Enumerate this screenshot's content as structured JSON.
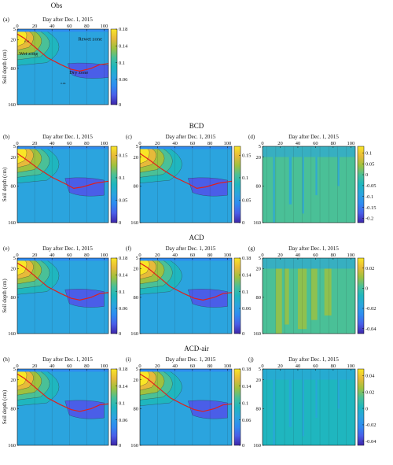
{
  "figure": {
    "rows": [
      {
        "title": "Obs",
        "panels": [
          "a"
        ]
      },
      {
        "title": "BCD",
        "panels": [
          "b",
          "c",
          "d"
        ]
      },
      {
        "title": "ACD",
        "panels": [
          "e",
          "f",
          "g"
        ]
      },
      {
        "title": "ACD-air",
        "panels": [
          "h",
          "i",
          "j"
        ]
      }
    ]
  },
  "chart_data": [
    {
      "type": "heatmap",
      "id": "a",
      "panel_label": "(a)",
      "xlabel": "Day after Dec. 1, 2015",
      "ylabel": "Soil depth (cm)",
      "xticks": [
        0,
        20,
        40,
        60,
        80,
        100
      ],
      "yticks": [
        5,
        20,
        80,
        160
      ],
      "xlim": [
        0,
        105
      ],
      "ylim": [
        5,
        160
      ],
      "colorbar": {
        "min": 0,
        "max": 0.18,
        "ticks": [
          "0.18",
          "0.14",
          "0.1",
          "0.06",
          "0"
        ]
      },
      "colormap": [
        "#3d26a8",
        "#4a5ee8",
        "#2f8cf0",
        "#2ba4de",
        "#1fb6bf",
        "#4ac097",
        "#9fc13f",
        "#e7ba3a",
        "#f9e626"
      ],
      "annotations": [
        "Rewet zone",
        "Wet zone",
        "Dry zone"
      ],
      "contour_labels": [
        "0.14",
        "0.1",
        "0.06"
      ],
      "red_line": {
        "x": [
          0,
          8,
          20,
          35,
          50,
          62,
          72,
          85,
          95,
          105
        ],
        "y": [
          12,
          18,
          35,
          58,
          72,
          82,
          86,
          80,
          72,
          70
        ]
      }
    },
    {
      "type": "heatmap",
      "id": "b",
      "panel_label": "(b)",
      "xlabel": "Day after Dec. 1, 2015",
      "ylabel": "Soil depth (cm)",
      "xticks": [
        0,
        20,
        40,
        60,
        80,
        100
      ],
      "yticks": [
        5,
        20,
        80,
        160
      ],
      "xlim": [
        0,
        105
      ],
      "ylim": [
        5,
        160
      ],
      "colorbar": {
        "min": 0,
        "max": 0.17,
        "ticks": [
          "0.15",
          "0.1",
          "0.05",
          "0"
        ]
      },
      "red_line": {
        "x": [
          0,
          10,
          25,
          40,
          55,
          65,
          75,
          90,
          105
        ],
        "y": [
          15,
          25,
          45,
          62,
          75,
          85,
          82,
          74,
          70
        ]
      }
    },
    {
      "type": "heatmap",
      "id": "c",
      "panel_label": "(c)",
      "xlabel": "Day after Dec. 1, 2015",
      "ylabel": "",
      "xticks": [
        0,
        20,
        40,
        60,
        80,
        100
      ],
      "yticks": [
        5,
        20,
        80,
        160
      ],
      "xlim": [
        0,
        105
      ],
      "ylim": [
        5,
        160
      ],
      "colorbar": {
        "min": 0,
        "max": 0.17,
        "ticks": [
          "0.15",
          "0.1",
          "0.05",
          "0"
        ]
      },
      "red_line": {
        "x": [
          0,
          10,
          25,
          40,
          55,
          65,
          75,
          90,
          105
        ],
        "y": [
          15,
          25,
          45,
          62,
          75,
          85,
          82,
          74,
          70
        ]
      }
    },
    {
      "type": "heatmap",
      "id": "d",
      "panel_label": "(d)",
      "xlabel": "Day after Dec. 1, 2015",
      "ylabel": "",
      "xticks": [
        0,
        20,
        40,
        60,
        80,
        100
      ],
      "yticks": [
        5,
        20,
        80,
        160
      ],
      "xlim": [
        0,
        105
      ],
      "ylim": [
        5,
        160
      ],
      "colorbar": {
        "min": -0.22,
        "max": 0.13,
        "ticks": [
          "0.1",
          "0.05",
          "0",
          "-0.05",
          "-0.1",
          "-0.15",
          "-0.2"
        ]
      }
    },
    {
      "type": "heatmap",
      "id": "e",
      "panel_label": "(e)",
      "xlabel": "Day after Dec. 1, 2015",
      "ylabel": "Soil depth (cm)",
      "xticks": [
        0,
        20,
        40,
        60,
        80,
        100
      ],
      "yticks": [
        5,
        20,
        80,
        160
      ],
      "xlim": [
        0,
        105
      ],
      "ylim": [
        5,
        160
      ],
      "colorbar": {
        "min": 0,
        "max": 0.18,
        "ticks": [
          "0.18",
          "0.14",
          "0.1",
          "0.06",
          "0"
        ]
      },
      "red_line": {
        "x": [
          0,
          8,
          20,
          35,
          50,
          62,
          72,
          85,
          95,
          105
        ],
        "y": [
          12,
          18,
          35,
          58,
          72,
          82,
          86,
          80,
          72,
          70
        ]
      }
    },
    {
      "type": "heatmap",
      "id": "f",
      "panel_label": "(f)",
      "xlabel": "Day after Dec. 1, 2015",
      "ylabel": "",
      "xticks": [
        0,
        20,
        40,
        60,
        80,
        100
      ],
      "yticks": [
        5,
        20,
        80,
        160
      ],
      "xlim": [
        0,
        105
      ],
      "ylim": [
        5,
        160
      ],
      "colorbar": {
        "min": 0,
        "max": 0.18,
        "ticks": [
          "0.18",
          "0.14",
          "0.1",
          "0.06",
          "0"
        ]
      },
      "red_line": {
        "x": [
          0,
          8,
          20,
          35,
          50,
          62,
          72,
          85,
          95,
          105
        ],
        "y": [
          12,
          18,
          35,
          58,
          72,
          82,
          86,
          80,
          72,
          70
        ]
      }
    },
    {
      "type": "heatmap",
      "id": "g",
      "panel_label": "(g)",
      "xlabel": "Day after Dec. 1, 2015",
      "ylabel": "",
      "xticks": [
        0,
        20,
        40,
        60,
        80,
        100
      ],
      "yticks": [
        5,
        20,
        80,
        160
      ],
      "xlim": [
        0,
        105
      ],
      "ylim": [
        5,
        160
      ],
      "colorbar": {
        "min": -0.045,
        "max": 0.03,
        "ticks": [
          "0.02",
          "0",
          "-0.02",
          "-0.04"
        ]
      }
    },
    {
      "type": "heatmap",
      "id": "h",
      "panel_label": "(h)",
      "xlabel": "Day after Dec. 1, 2015",
      "ylabel": "Soil depth (cm)",
      "xticks": [
        0,
        20,
        40,
        60,
        80,
        100
      ],
      "yticks": [
        5,
        20,
        80,
        160
      ],
      "xlim": [
        0,
        105
      ],
      "ylim": [
        5,
        160
      ],
      "colorbar": {
        "min": 0,
        "max": 0.18,
        "ticks": [
          "0.18",
          "0.14",
          "0.1",
          "0.06",
          "0"
        ]
      },
      "red_line": {
        "x": [
          0,
          8,
          20,
          35,
          50,
          62,
          72,
          85,
          95,
          105
        ],
        "y": [
          12,
          18,
          35,
          58,
          72,
          82,
          86,
          80,
          72,
          70
        ]
      }
    },
    {
      "type": "heatmap",
      "id": "i",
      "panel_label": "(i)",
      "xlabel": "Day after Dec. 1, 2015",
      "ylabel": "",
      "xticks": [
        0,
        20,
        40,
        60,
        80,
        100
      ],
      "yticks": [
        5,
        20,
        80,
        160
      ],
      "xlim": [
        0,
        105
      ],
      "ylim": [
        5,
        160
      ],
      "colorbar": {
        "min": 0,
        "max": 0.18,
        "ticks": [
          "0.18",
          "0.14",
          "0.1",
          "0.06",
          "0"
        ]
      },
      "red_line": {
        "x": [
          0,
          8,
          20,
          35,
          50,
          62,
          72,
          85,
          95,
          105
        ],
        "y": [
          12,
          18,
          35,
          58,
          72,
          82,
          86,
          80,
          72,
          70
        ]
      }
    },
    {
      "type": "heatmap",
      "id": "j",
      "panel_label": "(j)",
      "xlabel": "Day after Dec. 1, 2015",
      "ylabel": "",
      "xticks": [
        0,
        20,
        40,
        60,
        80,
        100
      ],
      "yticks": [
        5,
        20,
        80,
        160
      ],
      "xlim": [
        0,
        105
      ],
      "ylim": [
        5,
        160
      ],
      "colorbar": {
        "min": -0.045,
        "max": 0.048,
        "ticks": [
          "0.04",
          "0.02",
          "0",
          "-0.02",
          "-0.04"
        ]
      }
    }
  ]
}
